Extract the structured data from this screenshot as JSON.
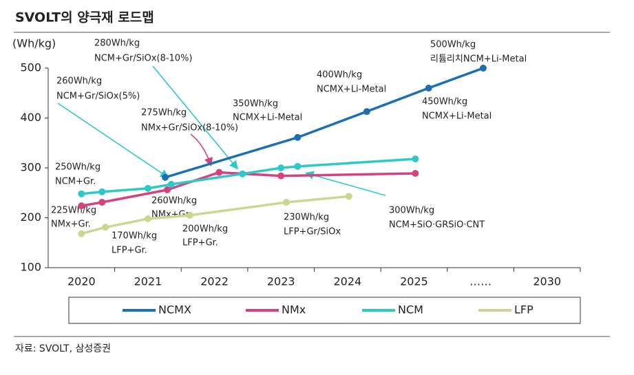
{
  "chart_data": {
    "type": "line",
    "title": "SVOLT의 양극재 로드맵",
    "y_label": "(Wh/kg)",
    "source": "자료: SVOLT, 삼성증권",
    "xlim": [
      -0.5,
      7.5
    ],
    "xticks": [
      {
        "value": 0,
        "label": "2020"
      },
      {
        "value": 1,
        "label": "2021"
      },
      {
        "value": 2,
        "label": "2022"
      },
      {
        "value": 3,
        "label": "2023"
      },
      {
        "value": 4,
        "label": "2024"
      },
      {
        "value": 5,
        "label": "2025"
      },
      {
        "value": 6,
        "label": "……"
      },
      {
        "value": 7,
        "label": "2030"
      }
    ],
    "ylim": [
      100,
      500
    ],
    "yticks": [
      100,
      200,
      300,
      400,
      500
    ],
    "series": [
      {
        "name": "NCMX",
        "color": "#1a6fb5",
        "x": [
          1.26,
          3.25,
          4.29,
          5.22,
          6.04
        ],
        "values": [
          281,
          361,
          413,
          460,
          500
        ]
      },
      {
        "name": "NMx",
        "color": "#d6417f",
        "x": [
          0,
          0.31,
          1.29,
          2.07,
          3.0,
          5.02
        ],
        "values": [
          224,
          231,
          256,
          291,
          284,
          289
        ]
      },
      {
        "name": "NCM",
        "color": "#2ec8c8",
        "x": [
          0,
          0.31,
          1.0,
          1.35,
          2.42,
          3.0,
          3.25,
          5.02
        ],
        "values": [
          248,
          252,
          259,
          267,
          288,
          300,
          303,
          318
        ]
      },
      {
        "name": "LFP",
        "color": "#c8d98f",
        "x": [
          0,
          0.36,
          1.0,
          1.63,
          3.08,
          4.02
        ],
        "values": [
          168,
          181,
          198,
          205,
          231,
          243
        ]
      }
    ],
    "annotations": [
      [
        "280Wh/kg",
        "NCM+Gr/SiOx(8-10%)"
      ],
      [
        "260Wh/kg",
        "NCM+Gr/SiOx(5%)"
      ],
      [
        "275Wh/kg",
        "NMx+Gr/SiOx(8-10%)"
      ],
      [
        "350Wh/kg",
        "NCMX+Li-Metal"
      ],
      [
        "400Wh/kg",
        "NCMX+Li-Metal"
      ],
      [
        "500Wh/kg",
        "리튬리치NCM+Li-Metal"
      ],
      [
        "450Wh/kg",
        "NCMX+Li-Metal"
      ],
      [
        "250Wh/kg",
        "NCM+Gr."
      ],
      [
        "225Wh/kg",
        "NMx+Gr."
      ],
      [
        "260Wh/kg",
        "NMx+Gr."
      ],
      [
        "170Wh/kg",
        "LFP+Gr."
      ],
      [
        "200Wh/kg",
        "LFP+Gr."
      ],
      [
        "230Wh/kg",
        "LFP+Gr/SiOx"
      ],
      [
        "300Wh/kg",
        "NCM+SiO·GRSiO·CNT"
      ]
    ]
  }
}
